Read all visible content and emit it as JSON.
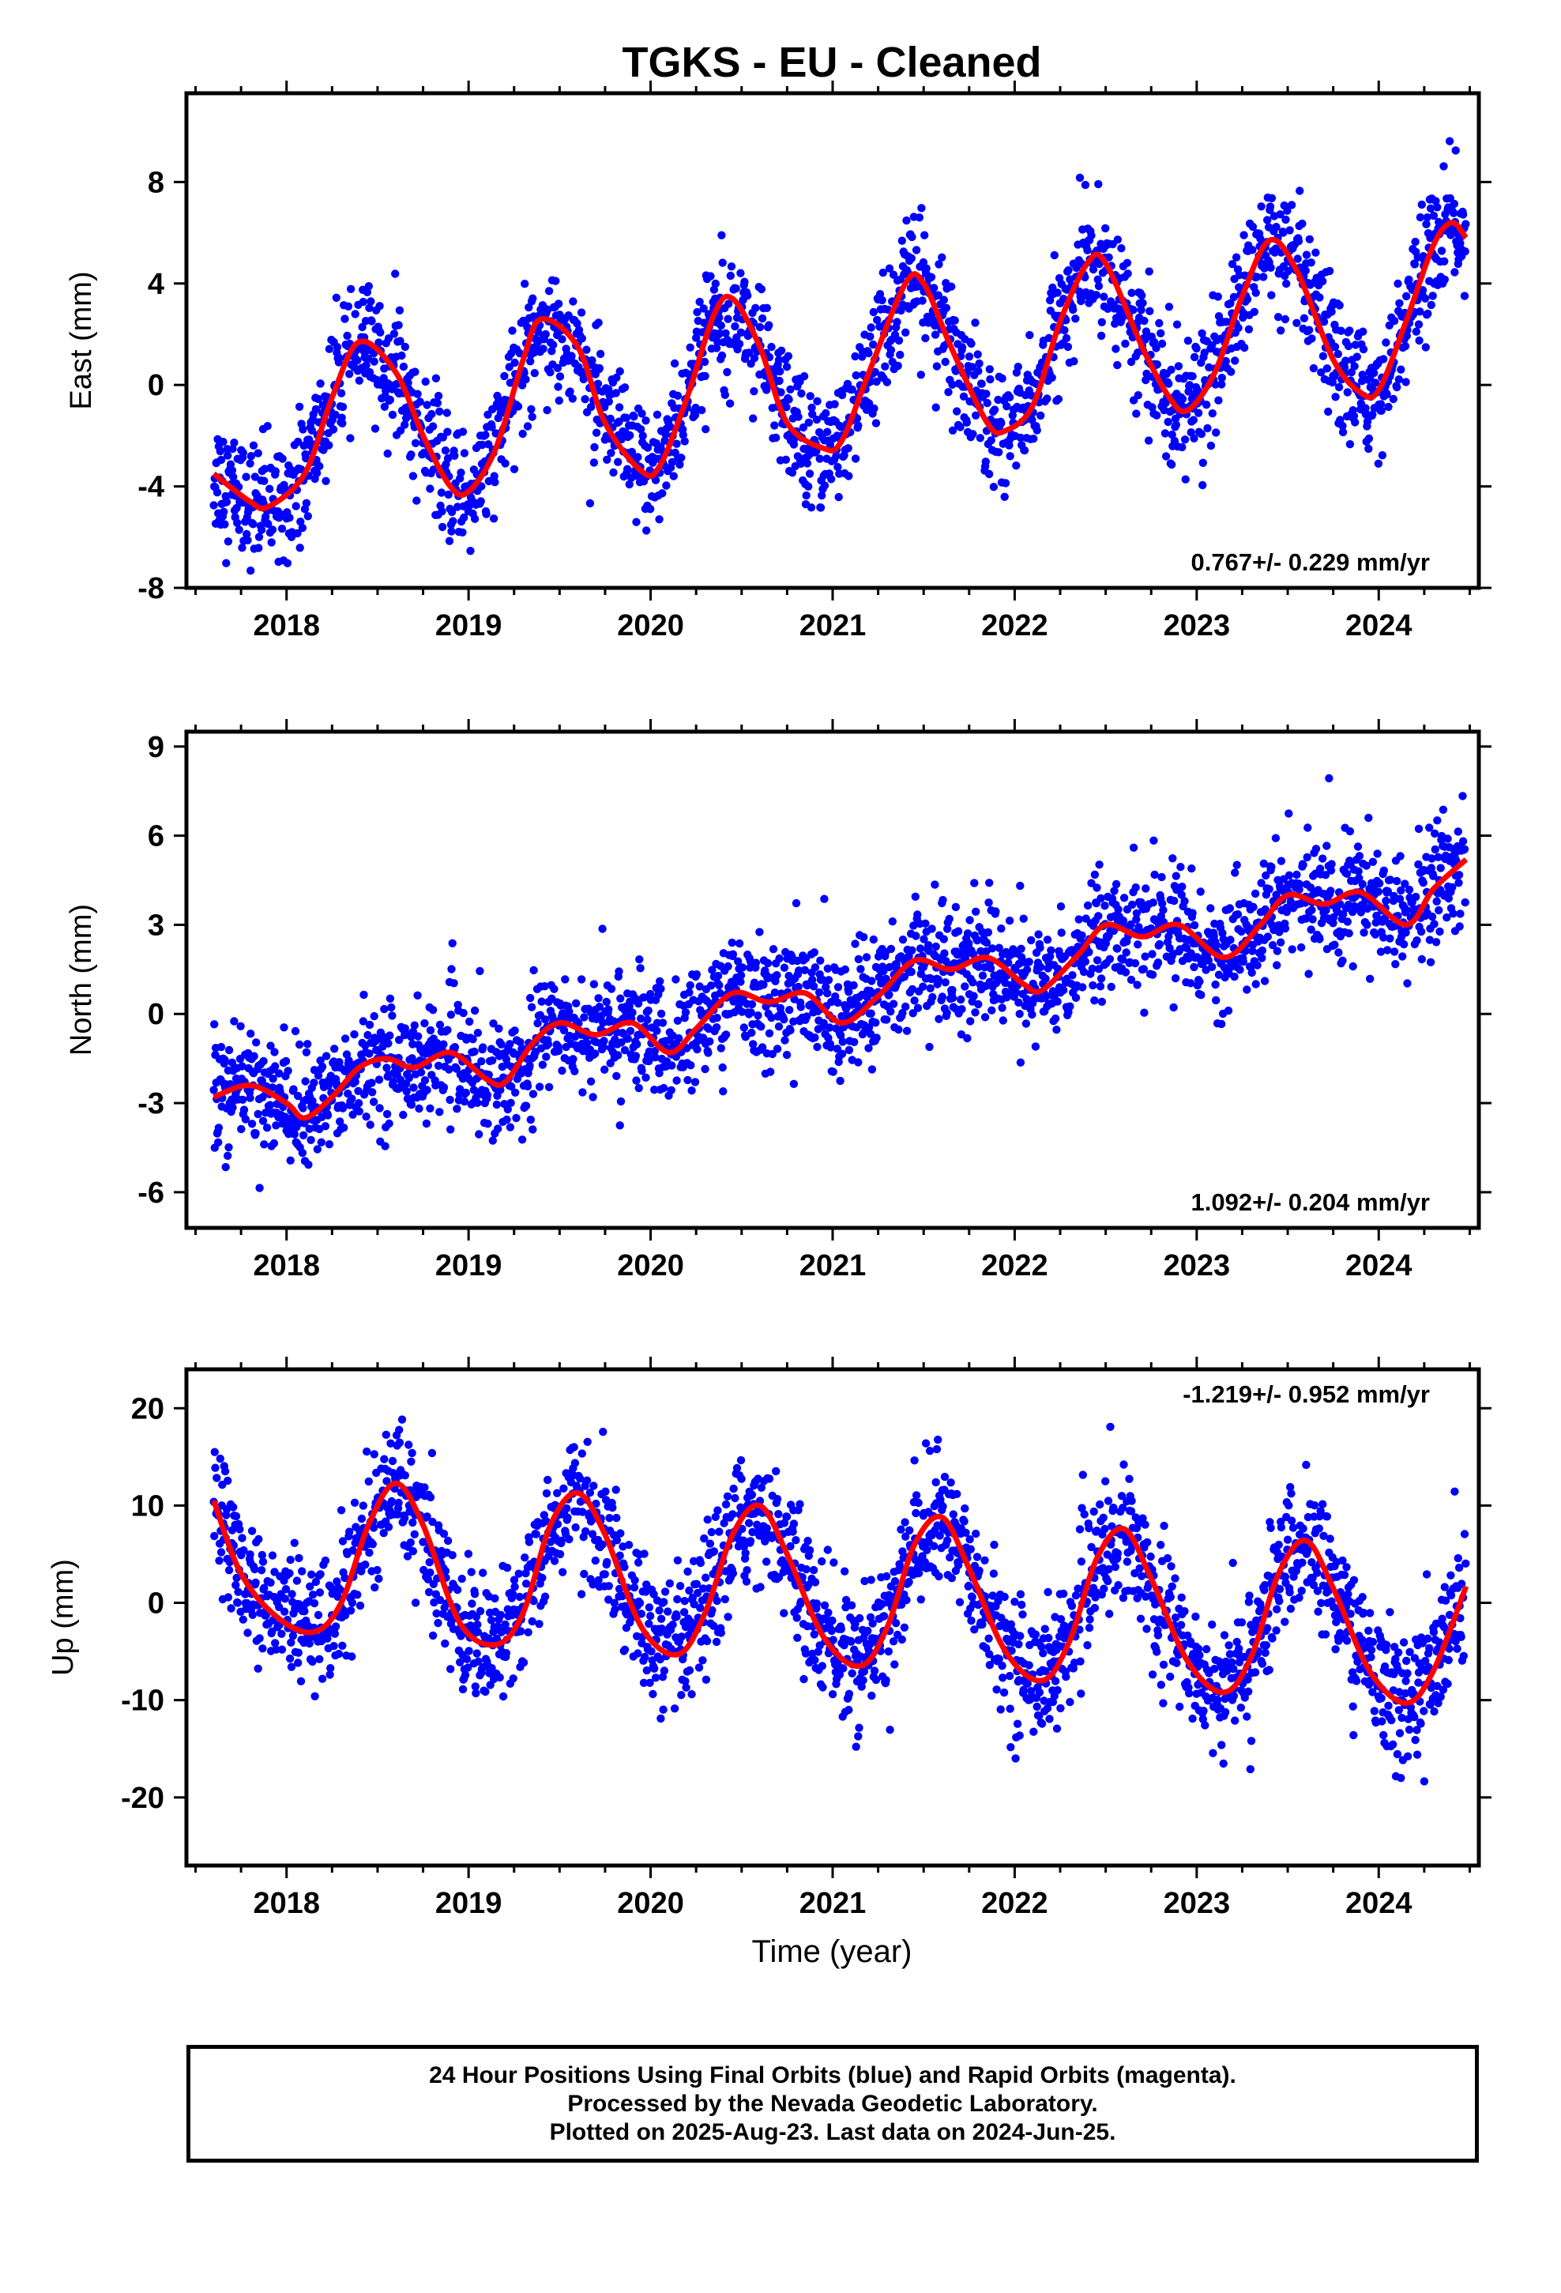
{
  "title": "TGKS  - EU - Cleaned",
  "xlabel": "Time (year)",
  "footer": {
    "line1": "24 Hour Positions Using Final Orbits (blue) and Rapid Orbits (magenta).",
    "line2": "Processed by the Nevada Geodetic Laboratory.",
    "line3": "Plotted on 2025-Aug-23. Last data on 2024-Jun-25."
  },
  "chart_data": [
    {
      "type": "scatter",
      "ylabel": "East (mm)",
      "ylim": [
        -8,
        11.5
      ],
      "xlim": [
        2017.45,
        2024.55
      ],
      "xticks": [
        2018,
        2019,
        2020,
        2021,
        2022,
        2023,
        2024
      ],
      "yticks": [
        -8,
        -4,
        0,
        4,
        8
      ],
      "rate": "0.767+/- 0.229 mm/yr",
      "rate_position": "bottom-right",
      "data_start": 2017.6,
      "data_end": 2024.48,
      "point_color": "#0000ff",
      "fit_color": "#ff0000",
      "fit_points": [
        [
          2017.6,
          -3.5
        ],
        [
          2017.8,
          -4.6
        ],
        [
          2017.9,
          -4.8
        ],
        [
          2018.1,
          -3.5
        ],
        [
          2018.25,
          -0.5
        ],
        [
          2018.4,
          1.7
        ],
        [
          2018.6,
          0.5
        ],
        [
          2018.75,
          -2.0
        ],
        [
          2018.9,
          -4.0
        ],
        [
          2019.0,
          -4.2
        ],
        [
          2019.15,
          -2.5
        ],
        [
          2019.3,
          1.0
        ],
        [
          2019.4,
          2.6
        ],
        [
          2019.6,
          1.5
        ],
        [
          2019.75,
          -1.5
        ],
        [
          2019.95,
          -3.4
        ],
        [
          2020.05,
          -3.2
        ],
        [
          2020.2,
          -0.5
        ],
        [
          2020.35,
          2.8
        ],
        [
          2020.45,
          3.4
        ],
        [
          2020.6,
          1.5
        ],
        [
          2020.75,
          -1.5
        ],
        [
          2020.95,
          -2.5
        ],
        [
          2021.05,
          -2.2
        ],
        [
          2021.2,
          0.5
        ],
        [
          2021.4,
          4.0
        ],
        [
          2021.5,
          4.0
        ],
        [
          2021.65,
          1.5
        ],
        [
          2021.85,
          -1.5
        ],
        [
          2021.95,
          -1.8
        ],
        [
          2022.1,
          -0.8
        ],
        [
          2022.25,
          2.5
        ],
        [
          2022.4,
          4.8
        ],
        [
          2022.5,
          4.8
        ],
        [
          2022.7,
          1.5
        ],
        [
          2022.85,
          -0.5
        ],
        [
          2022.95,
          -1.0
        ],
        [
          2023.1,
          0.5
        ],
        [
          2023.25,
          3.5
        ],
        [
          2023.4,
          5.7
        ],
        [
          2023.55,
          4.5
        ],
        [
          2023.75,
          1.0
        ],
        [
          2023.9,
          -0.3
        ],
        [
          2024.0,
          -0.2
        ],
        [
          2024.15,
          2.5
        ],
        [
          2024.3,
          5.5
        ],
        [
          2024.4,
          6.4
        ],
        [
          2024.48,
          5.8
        ]
      ],
      "scatter_spread": 1.6
    },
    {
      "type": "scatter",
      "ylabel": "North (mm)",
      "ylim": [
        -7.2,
        9.5
      ],
      "xlim": [
        2017.45,
        2024.55
      ],
      "xticks": [
        2018,
        2019,
        2020,
        2021,
        2022,
        2023,
        2024
      ],
      "yticks": [
        -6,
        -3,
        0,
        3,
        6,
        9
      ],
      "rate": "1.092+/- 0.204 mm/yr",
      "rate_position": "bottom-right",
      "data_start": 2017.6,
      "data_end": 2024.48,
      "point_color": "#0000ff",
      "fit_color": "#ff0000",
      "fit_points": [
        [
          2017.6,
          -2.8
        ],
        [
          2017.8,
          -2.4
        ],
        [
          2018.0,
          -3.0
        ],
        [
          2018.1,
          -3.5
        ],
        [
          2018.25,
          -2.8
        ],
        [
          2018.4,
          -1.8
        ],
        [
          2018.55,
          -1.5
        ],
        [
          2018.7,
          -1.8
        ],
        [
          2018.9,
          -1.3
        ],
        [
          2019.1,
          -2.2
        ],
        [
          2019.2,
          -2.3
        ],
        [
          2019.35,
          -1.0
        ],
        [
          2019.5,
          -0.3
        ],
        [
          2019.7,
          -0.7
        ],
        [
          2019.9,
          -0.3
        ],
        [
          2020.1,
          -1.3
        ],
        [
          2020.25,
          -0.5
        ],
        [
          2020.45,
          0.7
        ],
        [
          2020.65,
          0.4
        ],
        [
          2020.85,
          0.7
        ],
        [
          2021.05,
          -0.3
        ],
        [
          2021.25,
          0.6
        ],
        [
          2021.45,
          1.8
        ],
        [
          2021.65,
          1.5
        ],
        [
          2021.85,
          1.9
        ],
        [
          2022.05,
          1.0
        ],
        [
          2022.15,
          0.8
        ],
        [
          2022.35,
          2.0
        ],
        [
          2022.5,
          3.0
        ],
        [
          2022.7,
          2.6
        ],
        [
          2022.9,
          3.0
        ],
        [
          2023.15,
          1.9
        ],
        [
          2023.35,
          3.0
        ],
        [
          2023.5,
          4.0
        ],
        [
          2023.7,
          3.7
        ],
        [
          2023.9,
          4.1
        ],
        [
          2024.15,
          3.0
        ],
        [
          2024.3,
          4.2
        ],
        [
          2024.48,
          5.2
        ]
      ],
      "scatter_spread": 1.3
    },
    {
      "type": "scatter",
      "ylabel": "Up (mm)",
      "ylim": [
        -27,
        24
      ],
      "xlim": [
        2017.45,
        2024.55
      ],
      "xticks": [
        2018,
        2019,
        2020,
        2021,
        2022,
        2023,
        2024
      ],
      "yticks": [
        -20,
        -10,
        0,
        10,
        20
      ],
      "rate": "-1.219+/- 0.952 mm/yr",
      "rate_position": "top-right",
      "data_start": 2017.6,
      "data_end": 2024.48,
      "point_color": "#0000ff",
      "fit_color": "#ff0000",
      "fit_points": [
        [
          2017.6,
          10.5
        ],
        [
          2017.75,
          3.0
        ],
        [
          2017.95,
          -1.5
        ],
        [
          2018.15,
          -3.0
        ],
        [
          2018.3,
          0.0
        ],
        [
          2018.45,
          8.0
        ],
        [
          2018.6,
          12.3
        ],
        [
          2018.75,
          8.0
        ],
        [
          2018.95,
          -2.0
        ],
        [
          2019.15,
          -4.3
        ],
        [
          2019.3,
          -1.0
        ],
        [
          2019.45,
          8.0
        ],
        [
          2019.6,
          11.3
        ],
        [
          2019.75,
          7.0
        ],
        [
          2019.95,
          -2.5
        ],
        [
          2020.15,
          -5.3
        ],
        [
          2020.3,
          -1.0
        ],
        [
          2020.45,
          7.0
        ],
        [
          2020.6,
          10.0
        ],
        [
          2020.75,
          5.0
        ],
        [
          2020.95,
          -3.5
        ],
        [
          2021.15,
          -6.5
        ],
        [
          2021.3,
          -2.5
        ],
        [
          2021.45,
          6.0
        ],
        [
          2021.6,
          8.8
        ],
        [
          2021.75,
          3.5
        ],
        [
          2021.95,
          -5.0
        ],
        [
          2022.15,
          -8.0
        ],
        [
          2022.3,
          -4.0
        ],
        [
          2022.45,
          4.5
        ],
        [
          2022.6,
          7.6
        ],
        [
          2022.75,
          2.5
        ],
        [
          2022.95,
          -6.0
        ],
        [
          2023.15,
          -9.2
        ],
        [
          2023.3,
          -5.5
        ],
        [
          2023.45,
          3.0
        ],
        [
          2023.6,
          6.4
        ],
        [
          2023.75,
          1.5
        ],
        [
          2023.95,
          -7.0
        ],
        [
          2024.15,
          -10.3
        ],
        [
          2024.3,
          -7.0
        ],
        [
          2024.48,
          1.7
        ]
      ],
      "scatter_spread": 4.5
    }
  ]
}
